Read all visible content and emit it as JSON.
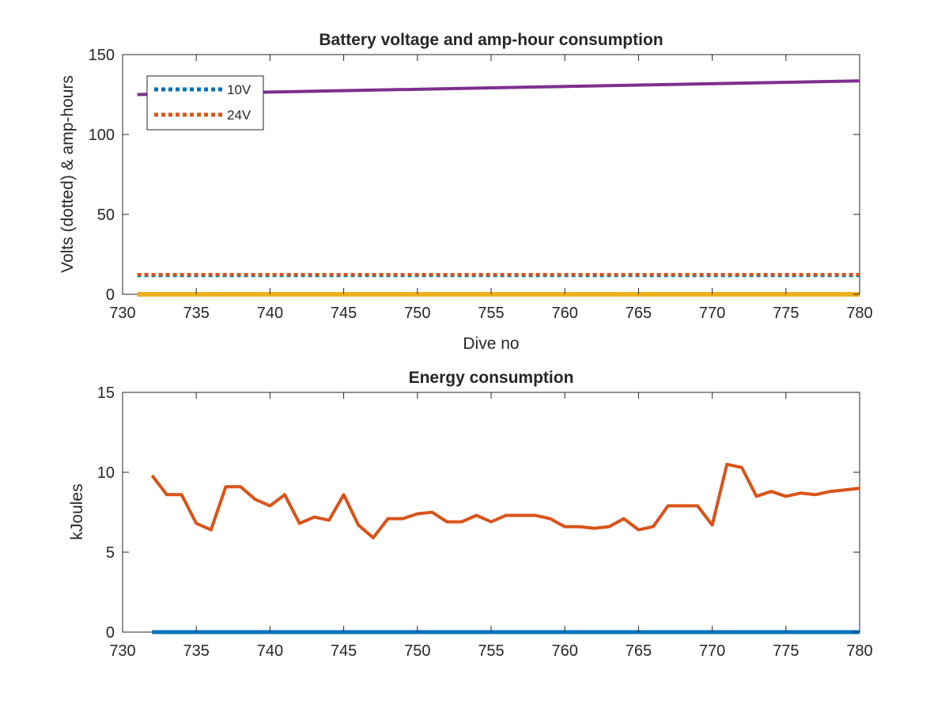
{
  "chart_data": [
    {
      "type": "line",
      "title": "Battery voltage and amp-hour consumption",
      "xlabel": "Dive no",
      "ylabel": "Volts (dotted) & amp-hours",
      "xlim": [
        730,
        780
      ],
      "ylim": [
        0,
        150
      ],
      "xticks": [
        730,
        735,
        740,
        745,
        750,
        755,
        760,
        765,
        770,
        775,
        780
      ],
      "yticks": [
        0,
        50,
        100,
        150
      ],
      "grid": false,
      "legend": "top-left",
      "series": [
        {
          "name": "10V",
          "style": "dotted",
          "color": "#0072BD",
          "x": [
            731,
            780
          ],
          "y": [
            11.8,
            11.8
          ]
        },
        {
          "name": "24V",
          "style": "dotted",
          "color": "#D95319",
          "x": [
            731,
            780
          ],
          "y": [
            12.4,
            12.4
          ]
        },
        {
          "style": "solid",
          "color": "#EDB120",
          "x": [
            731,
            780
          ],
          "y": [
            0,
            0
          ]
        },
        {
          "style": "solid",
          "color": "#7E2F8E",
          "x": [
            731,
            780
          ],
          "y": [
            125,
            133.5
          ]
        }
      ]
    },
    {
      "type": "line",
      "title": "Energy consumption",
      "xlabel": "",
      "ylabel": "kJoules",
      "xlim": [
        730,
        780
      ],
      "ylim": [
        0,
        15
      ],
      "xticks": [
        730,
        735,
        740,
        745,
        750,
        755,
        760,
        765,
        770,
        775,
        780
      ],
      "yticks": [
        0,
        5,
        10,
        15
      ],
      "grid": false,
      "series": [
        {
          "style": "solid",
          "color": "#0072BD",
          "x": [
            732,
            780
          ],
          "y": [
            0,
            0
          ]
        },
        {
          "style": "solid",
          "color": "#D95319",
          "x": [
            732,
            733,
            734,
            735,
            736,
            737,
            738,
            739,
            740,
            741,
            742,
            743,
            744,
            745,
            746,
            747,
            748,
            749,
            750,
            751,
            752,
            753,
            754,
            755,
            756,
            757,
            758,
            759,
            760,
            761,
            762,
            763,
            764,
            765,
            766,
            767,
            768,
            769,
            770,
            771,
            772,
            773,
            774,
            775,
            776,
            777,
            778,
            779,
            780
          ],
          "y": [
            9.8,
            8.6,
            8.6,
            6.8,
            6.4,
            9.1,
            9.1,
            8.3,
            7.9,
            8.6,
            6.8,
            7.2,
            7.0,
            8.6,
            6.7,
            5.9,
            7.1,
            7.1,
            7.4,
            7.5,
            6.9,
            6.9,
            7.3,
            6.9,
            7.3,
            7.3,
            7.3,
            7.1,
            6.6,
            6.6,
            6.5,
            6.6,
            7.1,
            6.4,
            6.6,
            7.9,
            7.9,
            7.9,
            6.7,
            10.5,
            10.3,
            8.5,
            8.8,
            8.5,
            8.7,
            8.6,
            8.8,
            8.9,
            9.0
          ]
        }
      ]
    }
  ]
}
